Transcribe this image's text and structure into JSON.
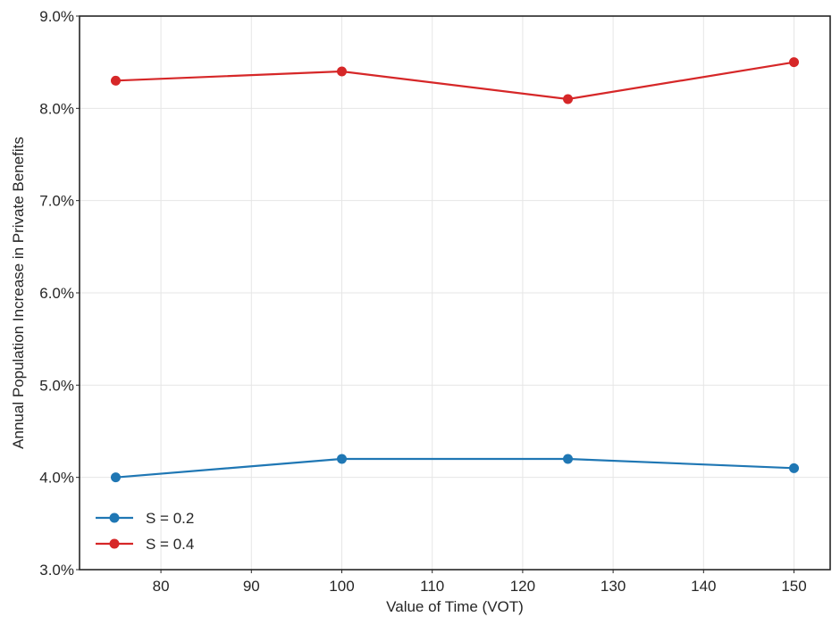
{
  "chart_data": {
    "type": "line",
    "title": "",
    "xlabel": "Value of Time (VOT)",
    "ylabel": "Annual Population Increase in Private Benefits",
    "xlim": [
      71,
      154
    ],
    "ylim": [
      0.03,
      0.09
    ],
    "x_ticks": [
      80,
      90,
      100,
      110,
      120,
      130,
      140,
      150
    ],
    "x_tick_labels": [
      "80",
      "90",
      "100",
      "110",
      "120",
      "130",
      "140",
      "150"
    ],
    "y_ticks": [
      0.03,
      0.04,
      0.05,
      0.06,
      0.07,
      0.08,
      0.09
    ],
    "y_tick_labels": [
      "3.0%",
      "4.0%",
      "5.0%",
      "6.0%",
      "7.0%",
      "8.0%",
      "9.0%"
    ],
    "grid": true,
    "legend_position": "lower-left",
    "x": [
      75,
      100,
      125,
      150
    ],
    "series": [
      {
        "name": "S = 0.2",
        "color": "#1f77b4",
        "values": [
          0.04,
          0.042,
          0.042,
          0.041
        ]
      },
      {
        "name": "S = 0.4",
        "color": "#d62728",
        "values": [
          0.083,
          0.084,
          0.081,
          0.085
        ]
      }
    ]
  }
}
